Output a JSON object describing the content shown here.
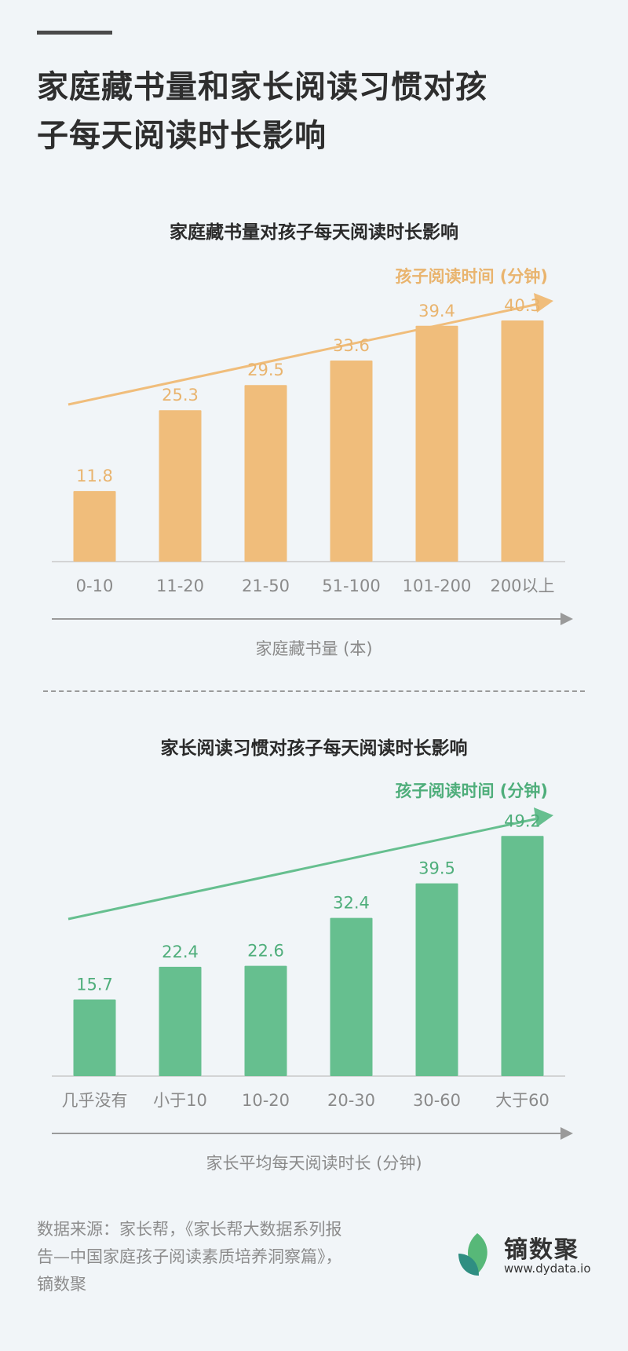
{
  "header": {
    "title_line1": "家庭藏书量和家长阅读习惯对孩",
    "title_line2": "子每天阅读时长影响"
  },
  "chart_data": [
    {
      "type": "bar",
      "title": "家庭藏书量对孩子每天阅读时长影响",
      "categories": [
        "0-10",
        "11-20",
        "21-50",
        "51-100",
        "101-200",
        "200以上"
      ],
      "values": [
        11.8,
        25.3,
        29.5,
        33.6,
        39.4,
        40.3
      ],
      "xlabel": "家庭藏书量 (本)",
      "ylabel": "孩子阅读时间 (分钟)",
      "ylim": [
        0,
        42
      ],
      "color": "#f0bd7b",
      "label_color": "#e9b46e",
      "grid": false
    },
    {
      "type": "bar",
      "title": "家长阅读习惯对孩子每天阅读时长影响",
      "categories": [
        "几乎没有",
        "小于10",
        "10-20",
        "20-30",
        "30-60",
        "大于60"
      ],
      "values": [
        15.7,
        22.4,
        22.6,
        32.4,
        39.5,
        49.2
      ],
      "xlabel": "家长平均每天阅读时长 (分钟)",
      "ylabel": "孩子阅读时间 (分钟)",
      "ylim": [
        0,
        51.5
      ],
      "color": "#66bf8f",
      "label_color": "#4fae7b",
      "grid": false
    }
  ],
  "footer": {
    "source_lines": [
      "数据来源：家长帮，《家长帮大数据系列报",
      "告—中国家庭孩子阅读素质培养洞察篇》，",
      "镝数聚"
    ]
  },
  "brand": {
    "name": "镝数聚",
    "url": "www.dydata.io",
    "leaf_colors": [
      "#57b878",
      "#2f8e82"
    ]
  }
}
